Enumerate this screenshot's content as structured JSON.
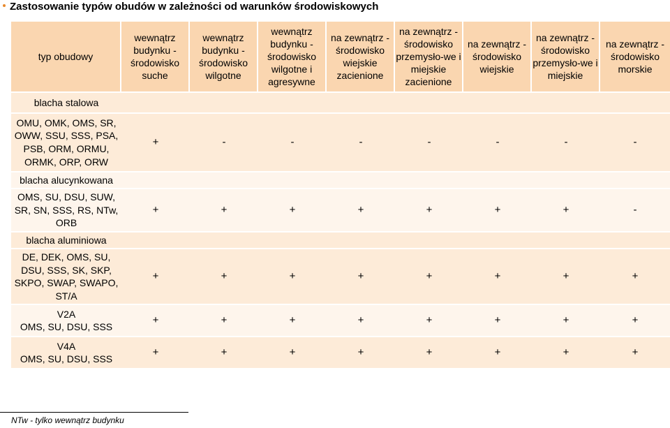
{
  "title": "Zastosowanie typów obudów w zależności od warunków środowiskowych",
  "bullet_color": "#e8892c",
  "colors": {
    "header": "#fad6b0",
    "row_dark": "#fdebd8",
    "row_light": "#fef5ec"
  },
  "header": {
    "type_label": "typ obudowy",
    "columns": [
      "wewnątrz budynku - środowisko suche",
      "wewnątrz budynku - środowisko wilgotne",
      "wewnątrz budynku - środowisko wilgotne i agresywne",
      "na zewnątrz - środowisko wiejskie zacienione",
      "na zewnątrz - środowisko przemysło-we i miejskie zacienione",
      "na zewnątrz - środowisko wiejskie",
      "na zewnątrz - środowisko przemysło-we i miejskie",
      "na zewnątrz - środowisko morskie"
    ]
  },
  "rows": [
    {
      "material": "blacha stalowa",
      "types": "OMU, OMK, OMS, SR, OWW, SSU, SSS, PSA, PSB, ORM, ORMU, ORMK, ORP, ORW",
      "values": [
        "+",
        "-",
        "-",
        "-",
        "-",
        "-",
        "-",
        "-"
      ]
    },
    {
      "material": "blacha alucynkowana",
      "types": "OMS, SU, DSU, SUW, SR, SN, SSS, RS, NTw, ORB",
      "values": [
        "+",
        "+",
        "+",
        "+",
        "+",
        "+",
        "+",
        "-"
      ]
    },
    {
      "material": "blacha aluminiowa",
      "types": "DE, DEK, OMS, SU, DSU, SSS, SK, SKP, SKPO, SWAP, SWAPO, ST/A",
      "values": [
        "+",
        "+",
        "+",
        "+",
        "+",
        "+",
        "+",
        "+"
      ]
    },
    {
      "material": "V2A",
      "types": "OMS, SU, DSU, SSS",
      "values": [
        "+",
        "+",
        "+",
        "+",
        "+",
        "+",
        "+",
        "+"
      ]
    },
    {
      "material": "V4A",
      "types": "OMS, SU, DSU, SSS",
      "values": [
        "+",
        "+",
        "+",
        "+",
        "+",
        "+",
        "+",
        "+"
      ]
    }
  ],
  "footnote": "NTw - tylko wewnątrz budynku"
}
